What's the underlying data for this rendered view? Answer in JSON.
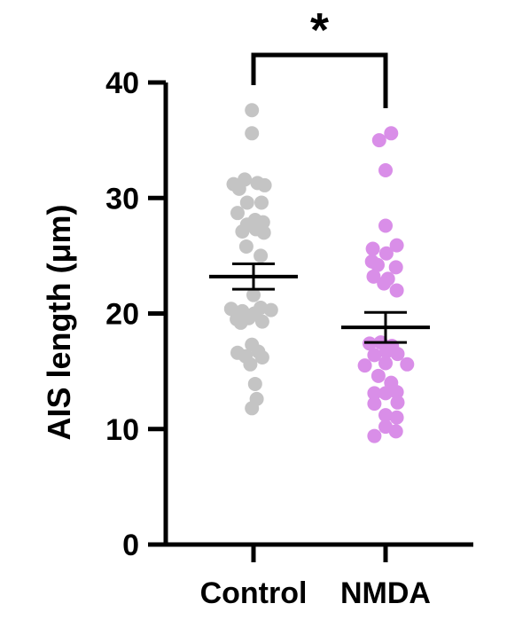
{
  "chart_data": {
    "type": "scatter",
    "ylabel": "AIS length (μm)",
    "ylim": [
      0,
      40
    ],
    "yticks": [
      "0",
      "10",
      "20",
      "30",
      "40"
    ],
    "categories": [
      "Control",
      "NMDA"
    ],
    "significance": "*",
    "grid": false,
    "series": [
      {
        "name": "Control",
        "color": "#c4c4c4",
        "mean": 23.2,
        "sem": 1.1,
        "points": [
          [
            -0.02,
            37.6
          ],
          [
            -0.02,
            35.6
          ],
          [
            -0.25,
            31.2
          ],
          [
            -0.11,
            31.6
          ],
          [
            -0.18,
            30.8
          ],
          [
            0.05,
            31.3
          ],
          [
            0.14,
            31.1
          ],
          [
            -0.08,
            29.6
          ],
          [
            0.1,
            29.6
          ],
          [
            -0.2,
            28.7
          ],
          [
            0.02,
            28.1
          ],
          [
            -0.08,
            27.7
          ],
          [
            0.12,
            27.9
          ],
          [
            -0.14,
            27.1
          ],
          [
            0.03,
            27.3
          ],
          [
            0.13,
            27.0
          ],
          [
            -0.09,
            25.8
          ],
          [
            0.09,
            25.0
          ],
          [
            0.0,
            21.6
          ],
          [
            -0.28,
            20.4
          ],
          [
            -0.14,
            20.2
          ],
          [
            0.01,
            20.0
          ],
          [
            0.22,
            20.3
          ],
          [
            0.09,
            20.5
          ],
          [
            -0.21,
            19.5
          ],
          [
            -0.06,
            19.6
          ],
          [
            0.11,
            19.3
          ],
          [
            -0.16,
            19.2
          ],
          [
            -0.02,
            17.3
          ],
          [
            -0.2,
            16.6
          ],
          [
            -0.1,
            16.3
          ],
          [
            0.06,
            16.7
          ],
          [
            0.11,
            16.2
          ],
          [
            -0.04,
            15.6
          ],
          [
            0.02,
            13.9
          ],
          [
            0.04,
            12.6
          ],
          [
            -0.02,
            11.8
          ]
        ]
      },
      {
        "name": "NMDA",
        "color": "#d98ee8",
        "mean": 18.8,
        "sem": 1.3,
        "points": [
          [
            -0.08,
            35.0
          ],
          [
            0.07,
            35.6
          ],
          [
            0.0,
            32.4
          ],
          [
            0.0,
            27.6
          ],
          [
            -0.16,
            25.6
          ],
          [
            0.14,
            25.9
          ],
          [
            0.01,
            25.2
          ],
          [
            -0.17,
            24.5
          ],
          [
            -0.1,
            24.2
          ],
          [
            0.13,
            24.0
          ],
          [
            -0.15,
            23.2
          ],
          [
            0.03,
            23.0
          ],
          [
            -0.02,
            22.6
          ],
          [
            0.14,
            22.0
          ],
          [
            -0.2,
            17.4
          ],
          [
            -0.06,
            17.5
          ],
          [
            0.08,
            17.2
          ],
          [
            0.01,
            16.7
          ],
          [
            0.15,
            16.5
          ],
          [
            -0.14,
            16.4
          ],
          [
            -0.26,
            15.5
          ],
          [
            0.0,
            15.7
          ],
          [
            0.27,
            15.6
          ],
          [
            -0.09,
            14.6
          ],
          [
            0.07,
            14.0
          ],
          [
            -0.14,
            13.1
          ],
          [
            0.0,
            13.1
          ],
          [
            0.14,
            13.2
          ],
          [
            -0.14,
            12.2
          ],
          [
            0.15,
            12.3
          ],
          [
            0.0,
            11.2
          ],
          [
            0.14,
            11.0
          ],
          [
            0.0,
            10.2
          ],
          [
            0.13,
            9.8
          ],
          [
            -0.14,
            9.4
          ]
        ]
      }
    ]
  }
}
